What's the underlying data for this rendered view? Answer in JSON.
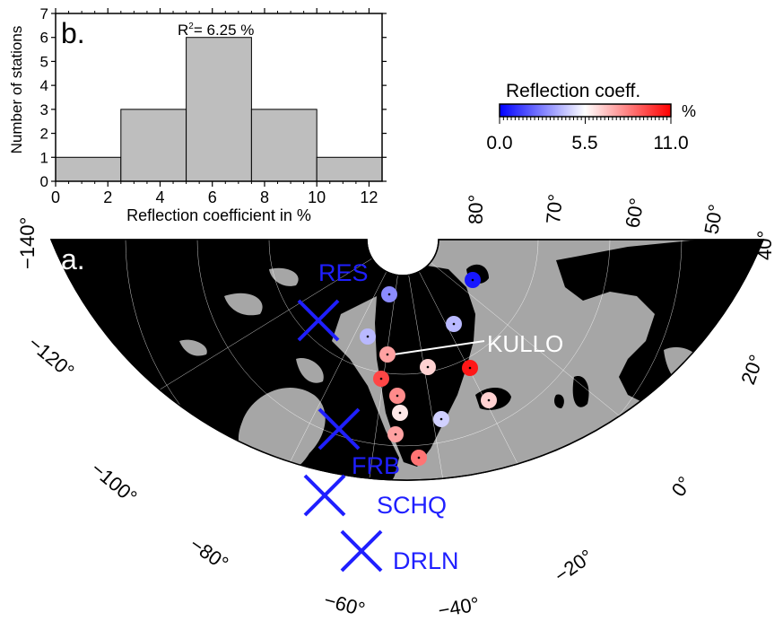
{
  "chart_data": [
    {
      "panel": "b.",
      "type": "bar",
      "annotation_r": "R",
      "annotation_sup": "2",
      "annotation_rest": "= 6.25 %",
      "xlabel": "Reflection coefficient in %",
      "ylabel": "Number of stations",
      "xlim": [
        0,
        12.5
      ],
      "ylim": [
        0,
        7
      ],
      "xticks": [
        "0",
        "2",
        "4",
        "6",
        "8",
        "10",
        "12"
      ],
      "yticks": [
        "0",
        "1",
        "2",
        "3",
        "4",
        "5",
        "6",
        "7"
      ],
      "bins": [
        [
          0,
          2.5
        ],
        [
          2.5,
          5
        ],
        [
          5,
          7.5
        ],
        [
          7.5,
          10
        ],
        [
          10,
          12.5
        ]
      ],
      "values": [
        1,
        3,
        6,
        3,
        1
      ],
      "bar_color": "#bebebe"
    },
    {
      "panel": "a.",
      "type": "scatter",
      "projection": "polar stereographic map",
      "longitude_labels": [
        "−140°",
        "−120°",
        "−100°",
        "−80°",
        "−60°",
        "−40°",
        "−20°",
        "0°",
        "20°",
        "40°",
        "50°",
        "60°",
        "70°",
        "80°"
      ],
      "colorbar": {
        "title": "Reflection coeff.",
        "unit": "%",
        "ticks": [
          "0.0",
          "5.5",
          "11.0"
        ],
        "range": [
          0,
          11
        ],
        "colors": [
          "#0000ff",
          "#ffffff",
          "#ff0000"
        ]
      },
      "stations": [
        {
          "name": "RES",
          "marker": "cross",
          "color": "#1f1fff"
        },
        {
          "name": "FRB",
          "marker": "cross",
          "color": "#1f1fff"
        },
        {
          "name": "SCHQ",
          "marker": "cross",
          "color": "#1f1fff"
        },
        {
          "name": "DRLN",
          "marker": "cross",
          "color": "#1f1fff"
        },
        {
          "name": "KULLO",
          "marker": "circle",
          "value": 7.5
        }
      ],
      "circle_values": [
        0.5,
        3.0,
        4.0,
        4.0,
        7.5,
        6.5,
        10.5,
        9.5,
        8.0,
        6.5,
        6.0,
        4.5,
        7.5,
        8.5,
        6.0
      ],
      "colors": {
        "land": "#000000",
        "sea": "#a6a6a6",
        "frame": "#ffffff"
      }
    }
  ]
}
